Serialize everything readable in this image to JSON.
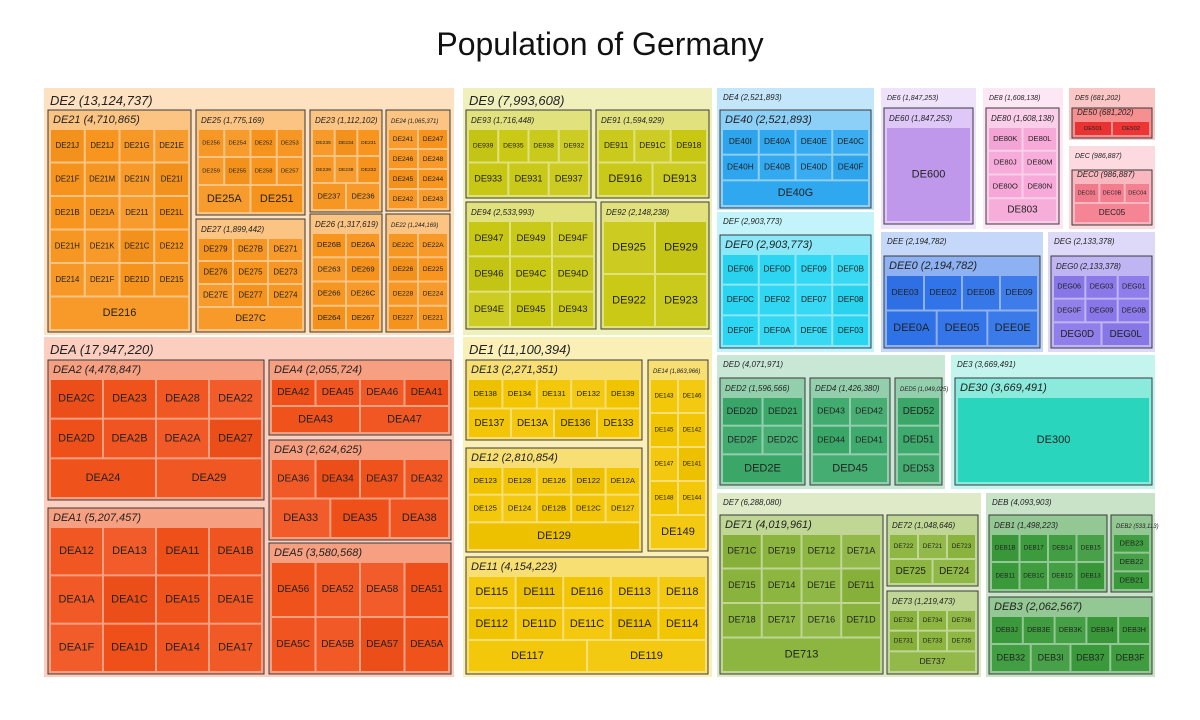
{
  "title": "Population of Germany",
  "chart_data": {
    "type": "treemap",
    "title": "Population of Germany",
    "regions": [
      {
        "code": "DE2",
        "label": "DE2 (13,124,737)",
        "value": 13124737,
        "color": "#f7941d",
        "children": [
          {
            "code": "DE21",
            "label": "DE21 (4,710,865)",
            "value": 4710865,
            "leaves": [
              "DE21J",
              "DE21J",
              "DE21G",
              "DE21E",
              "DE21F",
              "DE21M",
              "DE21N",
              "DE21I",
              "DE21B",
              "DE21A",
              "DE211",
              "DE21L",
              "DE21H",
              "DE21K",
              "DE21C",
              "DE212",
              "DE214",
              "DE21F",
              "DE21D",
              "DE215",
              "DE216"
            ]
          },
          {
            "code": "DE25",
            "label": "DE25 (1,775,169)",
            "value": 1775169,
            "leaves": [
              "DE256",
              "DE254",
              "DE252",
              "DE253",
              "DE259",
              "DE255",
              "DE258",
              "DE257",
              "DE25A",
              "DE251"
            ]
          },
          {
            "code": "DE27",
            "label": "DE27 (1,899,442)",
            "value": 1899442,
            "leaves": [
              "DE279",
              "DE27B",
              "DE271",
              "DE276",
              "DE275",
              "DE273",
              "DE27E",
              "DE277",
              "DE274",
              "DE27C"
            ]
          },
          {
            "code": "DE23",
            "label": "DE23 (1,112,102)",
            "value": 1112102,
            "leaves": [
              "DE235",
              "DE234",
              "DE231",
              "DE239",
              "DE238",
              "DE232",
              "DE237",
              "DE236"
            ]
          },
          {
            "code": "DE26",
            "label": "DE26 (1,317,619)",
            "value": 1317619,
            "leaves": [
              "DE26B",
              "DE26A",
              "DE263",
              "DE269",
              "DE266",
              "DE26C",
              "DE264",
              "DE267"
            ]
          },
          {
            "code": "DE24",
            "label": "DE24 (1,065,371)",
            "value": 1065371,
            "leaves": [
              "DE241",
              "DE247",
              "DE246",
              "DE248",
              "DE245",
              "DE244",
              "DE242",
              "DE243"
            ]
          },
          {
            "code": "DE22",
            "label": "DE22 (1,244,169)",
            "value": 1244169,
            "leaves": [
              "DE22C",
              "DE22A",
              "DE226",
              "DE225",
              "DE228",
              "DE224",
              "DE227",
              "DE221"
            ]
          }
        ]
      },
      {
        "code": "DEA",
        "label": "DEA (17,947,220)",
        "value": 17947220,
        "color": "#f0501a",
        "children": [
          {
            "code": "DEA2",
            "label": "DEA2 (4,478,847)",
            "value": 4478847,
            "leaves": [
              "DEA2C",
              "DEA23",
              "DEA28",
              "DEA22",
              "DEA2D",
              "DEA2B",
              "DEA2A",
              "DEA27",
              "DEA24",
              "DEA29"
            ]
          },
          {
            "code": "DEA1",
            "label": "DEA1 (5,207,457)",
            "value": 5207457,
            "leaves": [
              "DEA12",
              "DEA13",
              "DEA11",
              "DEA1B",
              "DEA1A",
              "DEA1C",
              "DEA15",
              "DEA1E",
              "DEA1F",
              "DEA1D",
              "DEA14",
              "DEA17"
            ]
          },
          {
            "code": "DEA4",
            "label": "DEA4 (2,055,724)",
            "value": 2055724,
            "leaves": [
              "DEA42",
              "DEA45",
              "DEA46",
              "DEA41",
              "DEA43",
              "DEA47"
            ]
          },
          {
            "code": "DEA3",
            "label": "DEA3 (2,624,625)",
            "value": 2624625,
            "leaves": [
              "DEA36",
              "DEA34",
              "DEA37",
              "DEA32",
              "DEA33",
              "DEA35",
              "DEA38"
            ]
          },
          {
            "code": "DEA5",
            "label": "DEA5 (3,580,568)",
            "value": 3580568,
            "leaves": [
              "DEA56",
              "DEA52",
              "DEA58",
              "DEA51",
              "DEA5C",
              "DEA5B",
              "DEA57",
              "DEA5A"
            ]
          }
        ]
      },
      {
        "code": "DE9",
        "label": "DE9 (7,993,608)",
        "value": 7993608,
        "color": "#c8c814",
        "children": [
          {
            "code": "DE93",
            "label": "DE93 (1,716,448)",
            "value": 1716448,
            "leaves": [
              "DE939",
              "DE935",
              "DE938",
              "DE932",
              "DE933",
              "DE931",
              "DE937"
            ]
          },
          {
            "code": "DE91",
            "label": "DE91 (1,594,929)",
            "value": 1594929,
            "leaves": [
              "DE911",
              "DE91C",
              "DE918",
              "DE916",
              "DE913"
            ]
          },
          {
            "code": "DE94",
            "label": "DE94 (2,533,993)",
            "value": 2533993,
            "leaves": [
              "DE947",
              "DE949",
              "DE94F",
              "DE946",
              "DE94C",
              "DE94D",
              "DE94E",
              "DE945",
              "DE943"
            ]
          },
          {
            "code": "DE92",
            "label": "DE92 (2,148,238)",
            "value": 2148238,
            "leaves": [
              "DE925",
              "DE929",
              "DE922",
              "DE923"
            ]
          }
        ]
      },
      {
        "code": "DE1",
        "label": "DE1 (11,100,394)",
        "value": 11100394,
        "color": "#f2c500",
        "children": [
          {
            "code": "DE13",
            "label": "DE13 (2,271,351)",
            "value": 2271351,
            "leaves": [
              "DE138",
              "DE134",
              "DE131",
              "DE132",
              "DE139",
              "DE137",
              "DE13A",
              "DE136",
              "DE133"
            ]
          },
          {
            "code": "DE14",
            "label": "DE14 (1,863,966)",
            "value": 1863966,
            "leaves": [
              "DE143",
              "DE146",
              "DE145",
              "DE142",
              "DE147",
              "DE141",
              "DE148",
              "DE144",
              "DE149"
            ]
          },
          {
            "code": "DE12",
            "label": "DE12 (2,810,854)",
            "value": 2810854,
            "leaves": [
              "DE123",
              "DE128",
              "DE126",
              "DE122",
              "DE12A",
              "DE125",
              "DE124",
              "DE12B",
              "DE12C",
              "DE127",
              "DE129"
            ]
          },
          {
            "code": "DE11",
            "label": "DE11 (4,154,223)",
            "value": 4154223,
            "leaves": [
              "DE115",
              "DE111",
              "DE116",
              "DE113",
              "DE118",
              "DE112",
              "DE11D",
              "DE11C",
              "DE11A",
              "DE114",
              "DE117",
              "DE119"
            ]
          }
        ]
      },
      {
        "code": "DE4",
        "label": "DE4 (2,521,893)",
        "value": 2521893,
        "color": "#2ea7f0",
        "children": [
          {
            "code": "DE40",
            "label": "DE40 (2,521,893)",
            "value": 2521893,
            "leaves": [
              "DE40I",
              "DE40A",
              "DE40E",
              "DE40C",
              "DE40H",
              "DE40B",
              "DE40D",
              "DE40F",
              "DE40G"
            ]
          }
        ]
      },
      {
        "code": "DE6",
        "label": "DE6 (1,847,253)",
        "value": 1847253,
        "color": "#c49bf0",
        "children": [
          {
            "code": "DE60",
            "label": "DE60 (1,847,253)",
            "value": 1847253,
            "leaves": [
              "DE600"
            ]
          }
        ]
      },
      {
        "code": "DE8",
        "label": "DE8 (1,608,138)",
        "value": 1608138,
        "color": "#f7a8d8",
        "children": [
          {
            "code": "DE80",
            "label": "DE80 (1,608,138)",
            "value": 1608138,
            "leaves": [
              "DE80K",
              "DE80L",
              "DE80J",
              "DE80M",
              "DE80O",
              "DE80N",
              "DE803"
            ]
          }
        ]
      },
      {
        "code": "DE5",
        "label": "DE5 (681,202)",
        "value": 681202,
        "color": "#ee3333",
        "children": [
          {
            "code": "DE50",
            "label": "DE50 (681,202)",
            "value": 681202,
            "leaves": [
              "DE501",
              "DE502"
            ]
          }
        ]
      },
      {
        "code": "DEC",
        "label": "DEC (986,887)",
        "value": 986887,
        "color": "#f47c8c",
        "children": [
          {
            "code": "DEC0",
            "label": "DEC0 (986,887)",
            "value": 986887,
            "leaves": [
              "DEC01",
              "DEC0B",
              "DEC04",
              "DEC05"
            ]
          }
        ]
      },
      {
        "code": "DEF",
        "label": "DEF (2,903,773)",
        "value": 2903773,
        "color": "#2ad6f2",
        "children": [
          {
            "code": "DEF0",
            "label": "DEF0 (2,903,773)",
            "value": 2903773,
            "leaves": [
              "DEF06",
              "DEF0D",
              "DEF09",
              "DEF0B",
              "DEF0C",
              "DEF02",
              "DEF07",
              "DEF08",
              "DEF0F",
              "DEF0A",
              "DEF0E",
              "DEF03"
            ]
          }
        ]
      },
      {
        "code": "DEE",
        "label": "DEE (2,194,782)",
        "value": 2194782,
        "color": "#2f72e8",
        "children": [
          {
            "code": "DEE0",
            "label": "DEE0 (2,194,782)",
            "value": 2194782,
            "leaves": [
              "DEE03",
              "DEE02",
              "DEE0B",
              "DEE09",
              "DEE0A",
              "DEE05",
              "DEE0E"
            ]
          }
        ]
      },
      {
        "code": "DEG",
        "label": "DEG (2,133,378)",
        "value": 2133378,
        "color": "#8a78ea",
        "children": [
          {
            "code": "DEG0",
            "label": "DEG0 (2,133,378)",
            "value": 2133378,
            "leaves": [
              "DEG06",
              "DEG03",
              "DEG01",
              "DEG0F",
              "DEG09",
              "DEG0B",
              "DEG0D",
              "DEG0L"
            ]
          }
        ]
      },
      {
        "code": "DED",
        "label": "DED (4,071,971)",
        "value": 4071971,
        "color": "#3aa86a",
        "children": [
          {
            "code": "DED2",
            "label": "DED2 (1,596,566)",
            "value": 1596566,
            "leaves": [
              "DED2D",
              "DED21",
              "DED2F",
              "DED2C",
              "DED2E"
            ]
          },
          {
            "code": "DED4",
            "label": "DED4 (1,426,380)",
            "value": 1426380,
            "leaves": [
              "DED43",
              "DED42",
              "DED44",
              "DED41",
              "DED45"
            ]
          },
          {
            "code": "DED5",
            "label": "DED5 (1,049,025)",
            "value": 1049025,
            "leaves": [
              "DED52",
              "DED51",
              "DED53"
            ]
          }
        ]
      },
      {
        "code": "DE3",
        "label": "DE3 (3,669,491)",
        "value": 3669491,
        "color": "#2ad9c0",
        "children": [
          {
            "code": "DE30",
            "label": "DE30 (3,669,491)",
            "value": 3669491,
            "leaves": [
              "DE300"
            ]
          }
        ]
      },
      {
        "code": "DE7",
        "label": "DE7 (6,288,080)",
        "value": 6288080,
        "color": "#8ab43c",
        "children": [
          {
            "code": "DE71",
            "label": "DE71 (4,019,961)",
            "value": 4019961,
            "leaves": [
              "DE71C",
              "DE719",
              "DE712",
              "DE71A",
              "DE715",
              "DE714",
              "DE71E",
              "DE711",
              "DE718",
              "DE717",
              "DE716",
              "DE71D",
              "DE713"
            ]
          },
          {
            "code": "DE72",
            "label": "DE72 (1,048,646)",
            "value": 1048646,
            "leaves": [
              "DE722",
              "DE721",
              "DE723",
              "DE725",
              "DE724"
            ]
          },
          {
            "code": "DE73",
            "label": "DE73 (1,219,473)",
            "value": 1219473,
            "leaves": [
              "DE732",
              "DE734",
              "DE736",
              "DE731",
              "DE733",
              "DE735",
              "DE737"
            ]
          }
        ]
      },
      {
        "code": "DEB",
        "label": "DEB (4,093,903)",
        "value": 4093903,
        "color": "#3a9a3a",
        "children": [
          {
            "code": "DEB1",
            "label": "DEB1 (1,498,223)",
            "value": 1498223,
            "leaves": [
              "DEB1B",
              "DEB17",
              "DEB14",
              "DEB15",
              "DEB11",
              "DEB1C",
              "DEB1D",
              "DEB13"
            ]
          },
          {
            "code": "DEB2",
            "label": "DEB2 (533,113)",
            "value": 533113,
            "leaves": [
              "DEB23",
              "DEB22",
              "DEB21"
            ]
          },
          {
            "code": "DEB3",
            "label": "DEB3 (2,062,567)",
            "value": 2062567,
            "leaves": [
              "DEB3J",
              "DEB3E",
              "DEB3K",
              "DEB34",
              "DEB3H",
              "DEB32",
              "DEB3I",
              "DEB37",
              "DEB3F"
            ]
          }
        ]
      }
    ]
  }
}
